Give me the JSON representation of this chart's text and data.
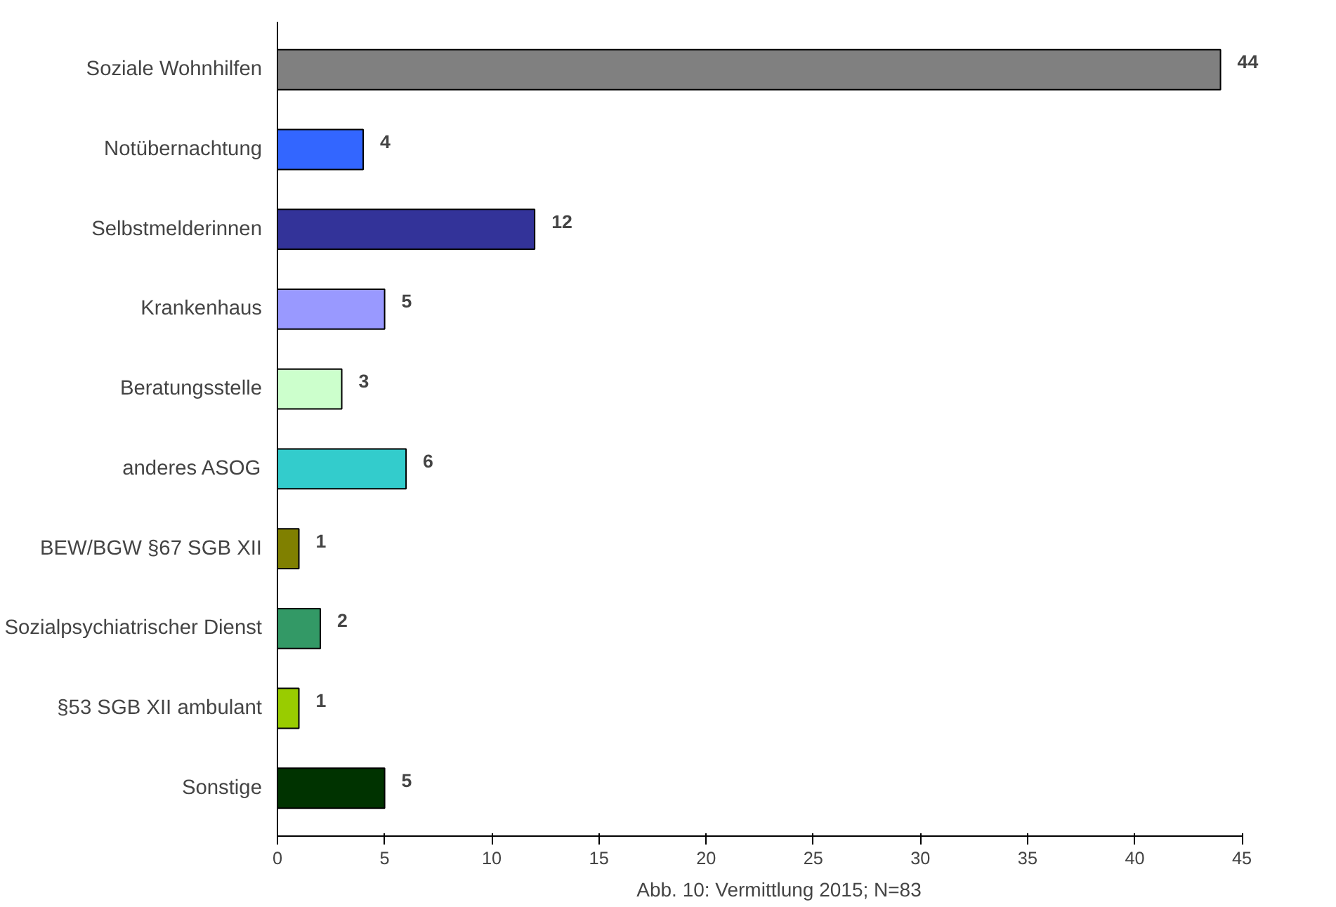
{
  "chart_data": {
    "type": "bar",
    "orientation": "horizontal",
    "categories": [
      "Soziale Wohnhilfen",
      "Notübernachtung",
      "Selbstmelderinnen",
      "Krankenhaus",
      "Beratungsstelle",
      "anderes ASOG",
      "BEW/BGW §67 SGB XII",
      "Sozialpsychiatrischer Dienst",
      "§53 SGB XII ambulant",
      "Sonstige"
    ],
    "values": [
      44,
      4,
      12,
      5,
      3,
      6,
      1,
      2,
      1,
      5
    ],
    "colors": [
      "#808080",
      "#3366ff",
      "#333399",
      "#9999ff",
      "#ccffcc",
      "#33cccc",
      "#808000",
      "#339966",
      "#99cc00",
      "#003300"
    ],
    "xlim": [
      0,
      45
    ],
    "xticks": [
      0,
      5,
      10,
      15,
      20,
      25,
      30,
      35,
      40,
      45
    ],
    "data_labels": true,
    "grid": false,
    "annotations": [
      "Abb. 10: Vermittlung 2015; N=83"
    ]
  }
}
